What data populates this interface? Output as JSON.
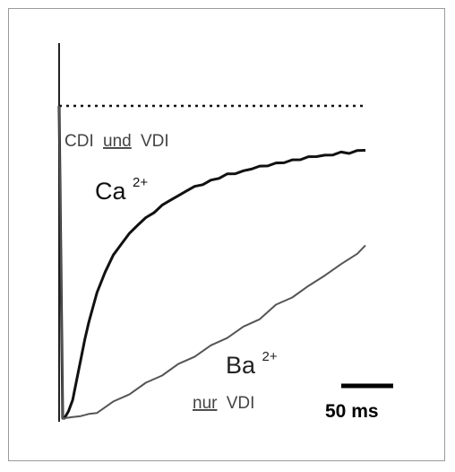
{
  "chart_data": {
    "type": "line",
    "xlabel": "",
    "ylabel": "",
    "scale_bar": {
      "value": 50,
      "unit": "ms",
      "label": "50 ms"
    },
    "reference_line": {
      "label_prefix": "CDI",
      "label_mid": "und",
      "label_suffix": "VDI",
      "style": "dotted"
    },
    "series": [
      {
        "name": "Ca",
        "superscript": "2+",
        "color": "#111111",
        "x": [
          0,
          5,
          10,
          15,
          20,
          25,
          30,
          40,
          50,
          60,
          70,
          80,
          90,
          100,
          110,
          120,
          130,
          140,
          150,
          160,
          170,
          180,
          190,
          200,
          210,
          220,
          230,
          240,
          250,
          260,
          270,
          280,
          290,
          300,
          310,
          320,
          330,
          340,
          350,
          360,
          370
        ],
        "y": [
          0.0,
          0.02,
          0.06,
          0.12,
          0.19,
          0.25,
          0.31,
          0.4,
          0.47,
          0.52,
          0.56,
          0.59,
          0.62,
          0.64,
          0.66,
          0.68,
          0.7,
          0.71,
          0.73,
          0.74,
          0.75,
          0.76,
          0.77,
          0.78,
          0.785,
          0.79,
          0.8,
          0.805,
          0.81,
          0.815,
          0.82,
          0.825,
          0.83,
          0.835,
          0.84,
          0.84,
          0.845,
          0.85,
          0.85,
          0.855,
          0.86
        ]
      },
      {
        "name": "Ba",
        "superscript": "2+",
        "color": "#555555",
        "sublabel_underlined": "nur",
        "sublabel_rest": "VDI",
        "x": [
          0,
          10,
          20,
          30,
          40,
          60,
          80,
          100,
          120,
          140,
          160,
          180,
          200,
          220,
          240,
          260,
          280,
          300,
          320,
          340,
          360,
          370
        ],
        "y": [
          0.0,
          0.0,
          0.01,
          0.01,
          0.02,
          0.05,
          0.08,
          0.11,
          0.14,
          0.17,
          0.2,
          0.23,
          0.26,
          0.29,
          0.32,
          0.36,
          0.39,
          0.42,
          0.46,
          0.49,
          0.53,
          0.55
        ]
      }
    ]
  }
}
